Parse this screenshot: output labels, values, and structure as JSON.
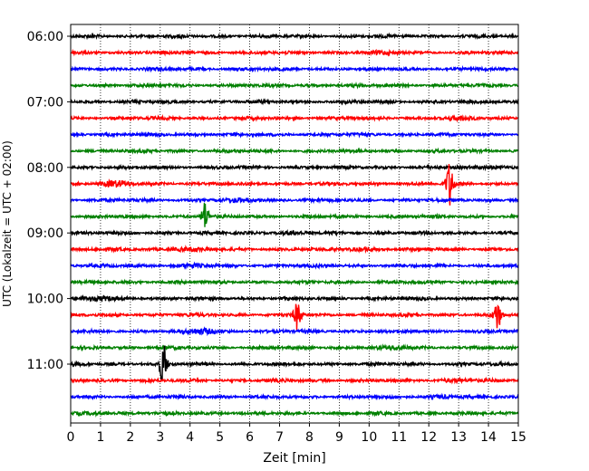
{
  "chart_data": {
    "type": "line",
    "title": "",
    "xlabel": "Zeit  [min]",
    "ylabel": "UTC (Lokalzeit = UTC + 02:00)",
    "xlim": [
      0,
      15
    ],
    "x_ticks": [
      0,
      1,
      2,
      3,
      4,
      5,
      6,
      7,
      8,
      9,
      10,
      11,
      12,
      13,
      14,
      15
    ],
    "x_tick_labels": [
      "0",
      "1",
      "2",
      "3",
      "4",
      "5",
      "6",
      "7",
      "8",
      "9",
      "10",
      "11",
      "12",
      "13",
      "14",
      "15"
    ],
    "vertical_grid": true,
    "grid_style": "dotted",
    "trace_interval_minutes": 15,
    "y_tick_labels": [
      "06:00",
      "07:00",
      "08:00",
      "09:00",
      "10:00",
      "11:00"
    ],
    "traces": [
      {
        "start": "06:00",
        "color": "#000000",
        "events": []
      },
      {
        "start": "06:15",
        "color": "#ff0000",
        "events": [
          {
            "minute": 10.6,
            "amp": 0.25
          }
        ]
      },
      {
        "start": "06:30",
        "color": "#0000ff",
        "events": []
      },
      {
        "start": "06:45",
        "color": "#008000",
        "events": []
      },
      {
        "start": "07:00",
        "color": "#000000",
        "events": []
      },
      {
        "start": "07:15",
        "color": "#ff0000",
        "events": [
          {
            "minute": 13.1,
            "amp": 0.3
          }
        ]
      },
      {
        "start": "07:30",
        "color": "#0000ff",
        "events": []
      },
      {
        "start": "07:45",
        "color": "#008000",
        "events": []
      },
      {
        "start": "08:00",
        "color": "#000000",
        "events": [
          {
            "minute": 14.1,
            "amp": 0.3
          }
        ]
      },
      {
        "start": "08:15",
        "color": "#ff0000",
        "events": [
          {
            "minute": 1.5,
            "amp": 0.6
          },
          {
            "minute": 12.7,
            "amp": 2.5
          }
        ]
      },
      {
        "start": "08:30",
        "color": "#0000ff",
        "events": [
          {
            "minute": 5.8,
            "amp": 0.3
          }
        ]
      },
      {
        "start": "08:45",
        "color": "#008000",
        "events": [
          {
            "minute": 4.5,
            "amp": 1.6
          }
        ]
      },
      {
        "start": "09:00",
        "color": "#000000",
        "events": [
          {
            "minute": 7.3,
            "amp": 0.3
          }
        ]
      },
      {
        "start": "09:15",
        "color": "#ff0000",
        "events": [
          {
            "minute": 3.8,
            "amp": 0.35
          },
          {
            "minute": 9.8,
            "amp": 0.35
          }
        ]
      },
      {
        "start": "09:30",
        "color": "#0000ff",
        "events": [
          {
            "minute": 4.0,
            "amp": 0.3
          }
        ]
      },
      {
        "start": "09:45",
        "color": "#008000",
        "events": []
      },
      {
        "start": "10:00",
        "color": "#000000",
        "events": [
          {
            "minute": 1.0,
            "amp": 0.35
          }
        ]
      },
      {
        "start": "10:15",
        "color": "#ff0000",
        "events": [
          {
            "minute": 7.6,
            "amp": 1.6
          },
          {
            "minute": 14.3,
            "amp": 1.6
          }
        ]
      },
      {
        "start": "10:30",
        "color": "#0000ff",
        "events": [
          {
            "minute": 4.4,
            "amp": 0.6
          }
        ]
      },
      {
        "start": "10:45",
        "color": "#008000",
        "events": [
          {
            "minute": 11.0,
            "amp": 0.3
          }
        ]
      },
      {
        "start": "11:00",
        "color": "#000000",
        "events": [
          {
            "minute": 3.1,
            "amp": 2.4
          }
        ]
      },
      {
        "start": "11:15",
        "color": "#ff0000",
        "events": [
          {
            "minute": 13.0,
            "amp": 0.3
          }
        ]
      },
      {
        "start": "11:30",
        "color": "#0000ff",
        "events": [
          {
            "minute": 12.5,
            "amp": 0.3
          }
        ]
      },
      {
        "start": "11:45",
        "color": "#008000",
        "events": [
          {
            "minute": 1.0,
            "amp": 0.3
          }
        ]
      }
    ]
  }
}
